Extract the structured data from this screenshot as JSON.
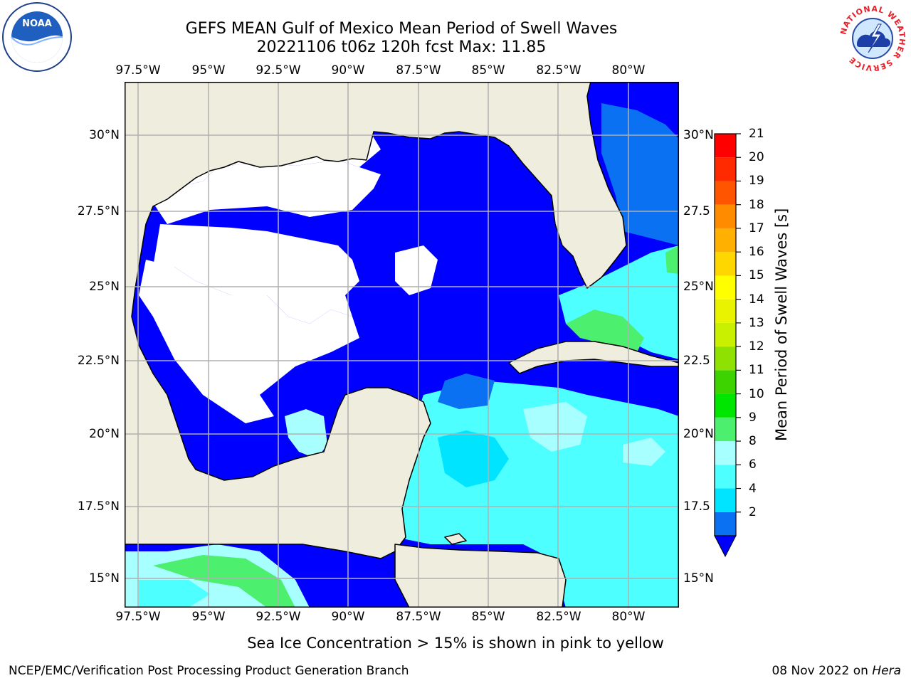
{
  "title": {
    "line1": "GEFS MEAN Gulf of Mexico Mean Period of Swell Waves",
    "line2": "20221106 t06z 120h fcst   Max: 11.85"
  },
  "map": {
    "lon_range": [
      -98.0,
      -78.2
    ],
    "lat_range": [
      14.0,
      31.7
    ],
    "lon_ticks": [
      "97.5°W",
      "95°W",
      "92.5°W",
      "90°W",
      "87.5°W",
      "85°W",
      "82.5°W",
      "80°W"
    ],
    "lat_ticks_left": [
      "30°N",
      "27.5°N",
      "25°N",
      "22.5°N",
      "20°N",
      "17.5°N",
      "15°N"
    ],
    "lat_ticks_right": [
      "30°N",
      "27.5",
      "25°N",
      "22.5",
      "20°N",
      "17.5",
      "15°N"
    ],
    "land_color": "#efeddd",
    "grid": true
  },
  "colorbar": {
    "label": "Mean Period of Swell Waves [s]",
    "ticks": [
      "21",
      "20",
      "19",
      "18",
      "17",
      "16",
      "15",
      "14",
      "13",
      "12",
      "11",
      "10",
      "9",
      "8",
      "6",
      "4",
      "2"
    ],
    "levels": [
      2,
      4,
      6,
      8,
      9,
      10,
      11,
      12,
      13,
      14,
      15,
      16,
      17,
      18,
      19,
      20,
      21
    ],
    "colors": [
      "#0a72f2",
      "#00e4ff",
      "#4dffff",
      "#a8ffff",
      "#4cef6e",
      "#00e600",
      "#3dd300",
      "#8ee100",
      "#c8f000",
      "#e9f300",
      "#ffff00",
      "#ffd700",
      "#ffb000",
      "#ff8c00",
      "#ff5400",
      "#ff2a00",
      "#ff0000"
    ],
    "extend_color": "#0000ff"
  },
  "logos": {
    "noaa": "NOAA",
    "nws_ring": "NATIONAL WEATHER SERVICE"
  },
  "note": "Sea Ice Concentration > 15% is shown in pink to yellow",
  "footer": {
    "left": "NCEP/EMC/Verification Post Processing Product Generation Branch",
    "date": "08 Nov 2022 on ",
    "machine": "Hera"
  }
}
